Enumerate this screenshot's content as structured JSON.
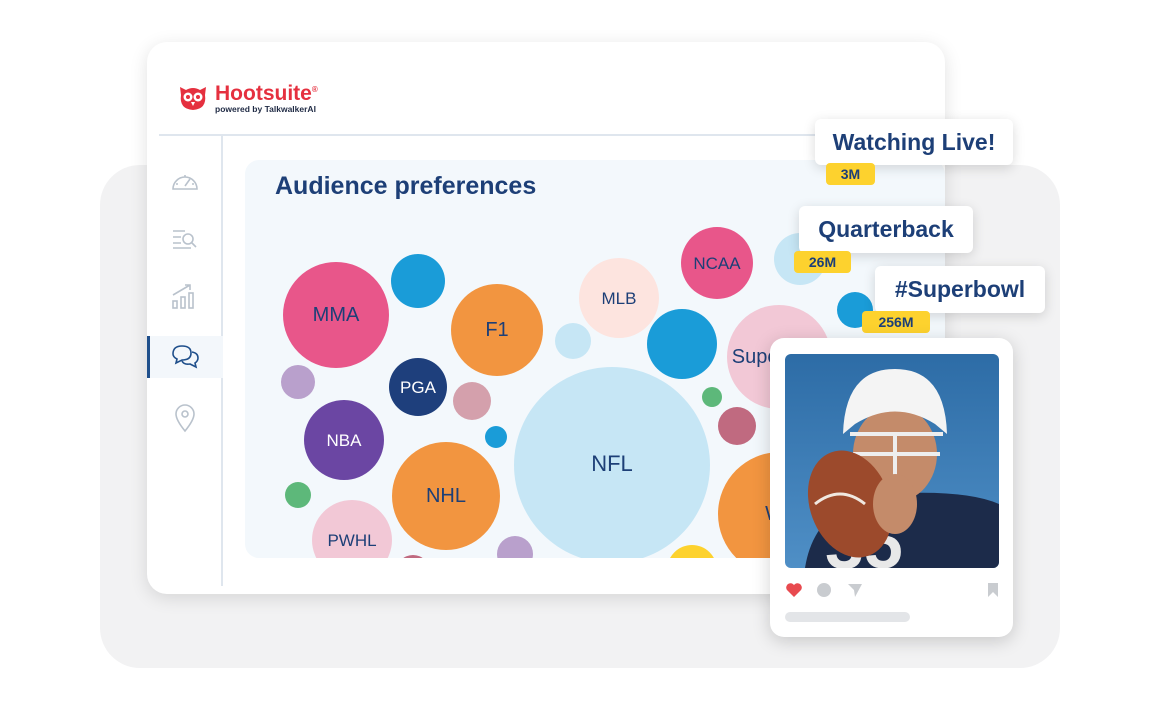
{
  "brand": {
    "name": "Hootsuite",
    "registered": "®",
    "tagline": "powered by TalkwalkerAI",
    "color": "#e5303f"
  },
  "sidebar": {
    "items": [
      {
        "icon": "dashboard-gauge-icon",
        "active": false
      },
      {
        "icon": "search-list-icon",
        "active": false
      },
      {
        "icon": "analytics-chart-icon",
        "active": false
      },
      {
        "icon": "chat-bubbles-icon",
        "active": true
      },
      {
        "icon": "location-pin-icon",
        "active": false
      }
    ]
  },
  "panel": {
    "title": "Audience preferences"
  },
  "chart_data": {
    "type": "bubble",
    "title": "Audience preferences",
    "bubbles": [
      {
        "label": "MMA",
        "color": "#e8568a"
      },
      {
        "label": "",
        "color": "#1a9cd8"
      },
      {
        "label": "F1",
        "color": "#f29540"
      },
      {
        "label": "MLB",
        "color": "#fde4df"
      },
      {
        "label": "",
        "color": "#c6e6f5"
      },
      {
        "label": "NCAA",
        "color": "#e8568a"
      },
      {
        "label": "",
        "color": "#c6e6f5"
      },
      {
        "label": "",
        "color": "#1a9cd8"
      },
      {
        "label": "Superbowl",
        "color": "#f2c8d6"
      },
      {
        "label": "",
        "color": "#b9a0cc"
      },
      {
        "label": "PGA",
        "color": "#1e3f7c"
      },
      {
        "label": "",
        "color": "#d4a0ac"
      },
      {
        "label": "NBA",
        "color": "#6b46a3"
      },
      {
        "label": "",
        "color": "#1a9cd8"
      },
      {
        "label": "NFL",
        "color": "#c6e6f5"
      },
      {
        "label": "",
        "color": "#5db87a"
      },
      {
        "label": "",
        "color": "#c06a80"
      },
      {
        "label": "NHL",
        "color": "#f29540"
      },
      {
        "label": "",
        "color": "#5db87a"
      },
      {
        "label": "PWHL",
        "color": "#f2c8d6"
      },
      {
        "label": "",
        "color": "#b9a0cc"
      },
      {
        "label": "",
        "color": "#c06a80"
      },
      {
        "label": "",
        "color": "#fdd22e"
      },
      {
        "label": "Wo",
        "color": "#f29540"
      },
      {
        "label": "",
        "color": "#1a9cd8"
      }
    ]
  },
  "callouts": [
    {
      "label": "Watching Live!",
      "count": "3M"
    },
    {
      "label": "Quarterback",
      "count": "26M"
    },
    {
      "label": "#Superbowl",
      "count": "256M"
    }
  ],
  "post": {
    "actions": [
      "heart-icon",
      "comment-icon",
      "share-icon",
      "bookmark-icon"
    ],
    "liked": true
  }
}
